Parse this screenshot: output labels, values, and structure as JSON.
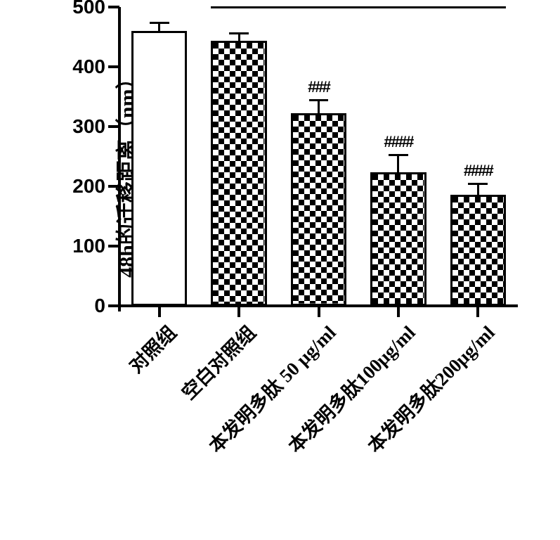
{
  "chart": {
    "type": "bar",
    "title": null,
    "background_color": "#ffffff",
    "axis_color": "#000000",
    "axis_linewidth": 4,
    "tick_length": 16,
    "fontfamily_numbers": "Arial, sans-serif",
    "fontfamily_cjk": "SimSun, STSong, Songti SC, serif",
    "y": {
      "label": "48h的迁移距离（nm）",
      "label_fontsize": 30,
      "label_fontweight": "bold",
      "min": 0,
      "max": 500,
      "tick_step": 100,
      "tick_labels": [
        "0",
        "100",
        "200",
        "300",
        "400",
        "500"
      ],
      "tick_fontsize": 28,
      "tick_fontweight": "bold"
    },
    "x": {
      "tick_label_rotation_deg": -45,
      "tick_label_fontsize": 27,
      "tick_label_fontweight": "bold"
    },
    "bar_width_rel": 0.7,
    "bar_border_color": "#000000",
    "bar_border_width": 3,
    "error_bar": {
      "color": "#000000",
      "linewidth": 3,
      "cap_width_rel": 0.35
    },
    "span_line": {
      "from_bar_index": 1,
      "to_bar_index": 4,
      "y_value": 507,
      "color": "#000000",
      "linewidth": 3
    },
    "significance_fontsize": 22,
    "significance_fontweight": "bold",
    "bars": [
      {
        "category": "对照组",
        "value": 460,
        "error": 14,
        "significance": null,
        "fill_color": "#ffffff",
        "pattern": "none"
      },
      {
        "category": "空白对照组",
        "value": 444,
        "error": 12,
        "significance": null,
        "fill_color": "#ffffff",
        "pattern": "checker"
      },
      {
        "category": "本发明多肽 50 μg/ml",
        "value": 322,
        "error": 22,
        "significance": "###",
        "fill_color": "#ffffff",
        "pattern": "h-lines"
      },
      {
        "category": "本发明多肽100μg/ml",
        "value": 224,
        "error": 28,
        "significance": "####",
        "fill_color": "#ffffff",
        "pattern": "v-lines"
      },
      {
        "category": "本发明多肽200μg/ml",
        "value": 186,
        "error": 18,
        "significance": "####",
        "fill_color": "#ffffff",
        "pattern": "diag"
      }
    ]
  }
}
